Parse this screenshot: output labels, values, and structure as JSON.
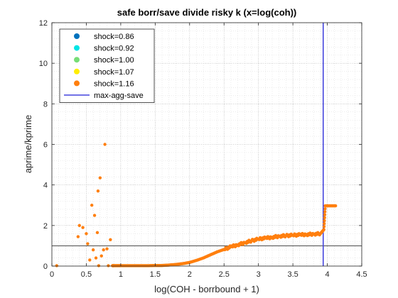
{
  "chart_data": {
    "type": "scatter",
    "title": "safe borr/save divide risky k (x=log(coh))",
    "xlabel": "log(COH - borrbound + 1)",
    "ylabel": "aprime/kprime",
    "xlim": [
      0,
      4.5
    ],
    "ylim": [
      0,
      12
    ],
    "xticks": [
      0,
      0.5,
      1,
      1.5,
      2,
      2.5,
      3,
      3.5,
      4,
      4.5
    ],
    "xtick_labels": [
      "0",
      "0.5",
      "1",
      "1.5",
      "2",
      "2.5",
      "3",
      "3.5",
      "4",
      "4.5"
    ],
    "yticks": [
      0,
      2,
      4,
      6,
      8,
      10,
      12
    ],
    "ytick_labels": [
      "0",
      "2",
      "4",
      "6",
      "8",
      "10",
      "12"
    ],
    "grid": "major and minor dotted",
    "legend_position": "top-left",
    "legend": [
      {
        "label": "shock=0.86",
        "color": "#0072BD",
        "kind": "marker"
      },
      {
        "label": "shock=0.92",
        "color": "#00E5E5",
        "kind": "marker"
      },
      {
        "label": "shock=1.00",
        "color": "#77DD77",
        "kind": "marker"
      },
      {
        "label": "shock=1.07",
        "color": "#FFEE00",
        "kind": "marker"
      },
      {
        "label": "shock=1.16",
        "color": "#FF7F0E",
        "kind": "marker"
      },
      {
        "label": "max-agg-save",
        "color": "#4444DD",
        "kind": "line"
      }
    ],
    "reference_lines": {
      "vertical_x": 3.94,
      "horizontal_y": 1
    },
    "series": [
      {
        "name": "shock=1.16",
        "color": "#FF7F0E",
        "points": [
          [
            0.07,
            0.02
          ],
          [
            0.38,
            1.45
          ],
          [
            0.4,
            2.0
          ],
          [
            0.45,
            1.9
          ],
          [
            0.5,
            1.6
          ],
          [
            0.52,
            1.1
          ],
          [
            0.55,
            0.3
          ],
          [
            0.58,
            3.0
          ],
          [
            0.6,
            0.8
          ],
          [
            0.62,
            2.5
          ],
          [
            0.64,
            0.4
          ],
          [
            0.66,
            1.65
          ],
          [
            0.67,
            3.7
          ],
          [
            0.68,
            0.02
          ],
          [
            0.7,
            4.35
          ],
          [
            0.72,
            0.5
          ],
          [
            0.75,
            0.8
          ],
          [
            0.77,
            6.0
          ],
          [
            0.8,
            0.85
          ],
          [
            0.82,
            0.02
          ],
          [
            0.85,
            1.3
          ],
          [
            0.88,
            0.02
          ],
          [
            0.9,
            0.02
          ],
          [
            0.95,
            0.02
          ],
          [
            1.0,
            0.02
          ],
          [
            1.1,
            0.02
          ],
          [
            1.2,
            0.02
          ],
          [
            1.3,
            0.02
          ],
          [
            1.4,
            0.02
          ],
          [
            1.5,
            0.03
          ],
          [
            1.6,
            0.03
          ],
          [
            1.7,
            0.05
          ],
          [
            1.8,
            0.08
          ],
          [
            1.9,
            0.12
          ],
          [
            2.0,
            0.18
          ],
          [
            2.1,
            0.28
          ],
          [
            2.2,
            0.4
          ],
          [
            2.3,
            0.55
          ],
          [
            2.4,
            0.7
          ],
          [
            2.5,
            0.82
          ],
          [
            2.6,
            0.95
          ],
          [
            2.7,
            1.05
          ],
          [
            2.8,
            1.15
          ],
          [
            2.9,
            1.25
          ],
          [
            3.0,
            1.33
          ],
          [
            3.1,
            1.38
          ],
          [
            3.2,
            1.42
          ],
          [
            3.3,
            1.47
          ],
          [
            3.4,
            1.5
          ],
          [
            3.5,
            1.52
          ],
          [
            3.6,
            1.54
          ],
          [
            3.7,
            1.56
          ],
          [
            3.8,
            1.58
          ],
          [
            3.9,
            1.6
          ],
          [
            3.95,
            1.8
          ],
          [
            3.97,
            2.97
          ],
          [
            4.05,
            2.97
          ],
          [
            4.12,
            2.97
          ]
        ]
      }
    ]
  }
}
